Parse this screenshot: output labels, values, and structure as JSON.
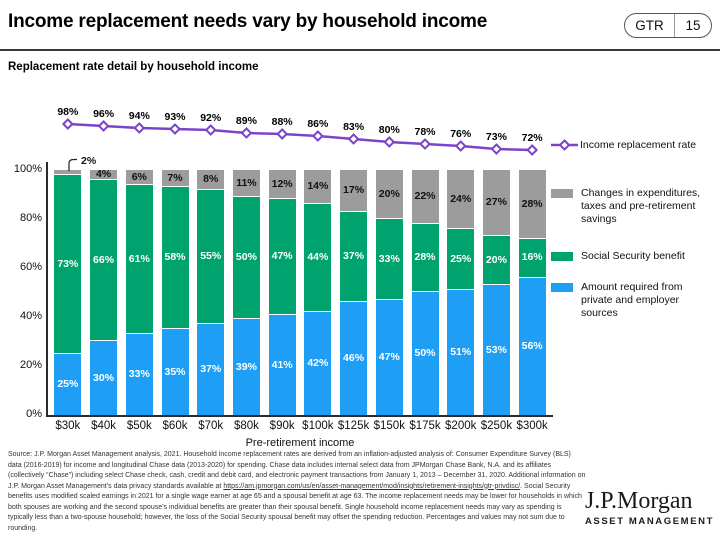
{
  "header": {
    "title": "Income replacement needs vary by household income",
    "badge": {
      "label": "GTR",
      "page": "15"
    }
  },
  "subtitle": "Replacement rate detail by household income",
  "chart_data": {
    "type": "bar",
    "stacked": true,
    "title": "Replacement rate detail by household income",
    "xlabel": "Pre-retirement income",
    "ylabel": "",
    "ylim": [
      0,
      100
    ],
    "y_ticks": [
      "100%",
      "80%",
      "60%",
      "40%",
      "20%",
      "0%"
    ],
    "grid": false,
    "legend_position": "right",
    "categories": [
      "$30k",
      "$40k",
      "$50k",
      "$60k",
      "$70k",
      "$80k",
      "$90k",
      "$100k",
      "$125k",
      "$150k",
      "$175k",
      "$200k",
      "$250k",
      "$300k"
    ],
    "series": [
      {
        "name": "Amount required from private and employer sources",
        "color": "#1E9EF4",
        "values": [
          25,
          30,
          33,
          35,
          37,
          39,
          41,
          42,
          46,
          47,
          50,
          51,
          53,
          56
        ]
      },
      {
        "name": "Social Security benefit",
        "color": "#00A26E",
        "values": [
          73,
          66,
          61,
          58,
          55,
          50,
          47,
          44,
          37,
          33,
          28,
          25,
          20,
          16
        ]
      },
      {
        "name": "Changes in expenditures, taxes and pre-retirement savings",
        "color": "#9C9C9C",
        "values": [
          2,
          4,
          6,
          7,
          8,
          11,
          12,
          14,
          17,
          20,
          22,
          24,
          27,
          28
        ]
      }
    ],
    "line_series": {
      "name": "Income replacement rate",
      "color": "#7B44C8",
      "values": [
        98,
        96,
        94,
        93,
        92,
        89,
        88,
        86,
        83,
        80,
        78,
        76,
        73,
        72
      ]
    },
    "first_bar_callout": "2%"
  },
  "footer": {
    "source_before": "Source: J.P. Morgan Asset Management analysis, 2021. Household income replacement rates are derived from an inflation-adjusted analysis of: Consumer Expenditure Survey (BLS) data (2016-2019) for income and longitudinal Chase data (2013-2020) for spending. Chase data includes internal select data from JPMorgan Chase Bank, N.A. and its affiliates (collectively “Chase”) including select Chase check, cash, credit and debit card, and electronic payment transactions from January 1, 2013 – December 31, 2020. Additional information on J.P. Morgan Asset Management’s data privacy standards available at ",
    "source_link": "https://am.jpmorgan.com/us/en/asset-management/mod/insights/retirement-insights/gtr-privdisc/",
    "source_after": ". Social Security benefits uses modified scaled earnings in 2021 for a single wage earner at age 65 and a spousal benefit at age 63. The income replacement needs may be lower for households in which both spouses are working and the second spouse’s individual benefits are greater than their spousal benefit. Single household income replacement needs may vary as spending is typically less than a two-spouse household; however, the loss of the Social Security spousal benefit may offset the spending reduction. Percentages and values may not sum due to rounding."
  },
  "logo": {
    "name": "J.P.Morgan",
    "sub": "ASSET MANAGEMENT"
  }
}
